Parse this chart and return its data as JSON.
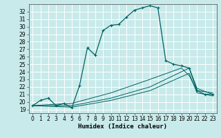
{
  "xlabel": "Humidex (Indice chaleur)",
  "xlim": [
    -0.5,
    23.5
  ],
  "ylim": [
    18.5,
    33.0
  ],
  "yticks": [
    19,
    20,
    21,
    22,
    23,
    24,
    25,
    26,
    27,
    28,
    29,
    30,
    31,
    32
  ],
  "xticks": [
    0,
    1,
    2,
    3,
    4,
    5,
    6,
    7,
    8,
    9,
    10,
    11,
    12,
    13,
    14,
    15,
    16,
    17,
    18,
    19,
    20,
    21,
    22,
    23
  ],
  "bg_color": "#c8eaea",
  "line_color": "#006060",
  "grid_color": "#ffffff",
  "main_curve": {
    "x": [
      0,
      1,
      2,
      3,
      4,
      5,
      6,
      7,
      8,
      9,
      10,
      11,
      12,
      13,
      14,
      15,
      16,
      17,
      18,
      19,
      20,
      21,
      22,
      23
    ],
    "y": [
      19.5,
      20.2,
      20.5,
      19.5,
      19.8,
      19.2,
      22.2,
      27.2,
      26.2,
      29.5,
      30.2,
      30.3,
      31.3,
      32.2,
      32.5,
      32.8,
      32.5,
      25.5,
      25.0,
      24.8,
      24.5,
      21.5,
      21.0,
      21.0
    ]
  },
  "secondary_curves": [
    {
      "x": [
        0,
        5,
        10,
        15,
        20,
        21,
        23
      ],
      "y": [
        19.5,
        19.3,
        20.2,
        21.5,
        23.8,
        21.2,
        20.8
      ]
    },
    {
      "x": [
        0,
        5,
        10,
        15,
        20,
        21,
        23
      ],
      "y": [
        19.5,
        19.5,
        20.5,
        22.0,
        24.5,
        21.8,
        21.0
      ]
    },
    {
      "x": [
        0,
        5,
        10,
        15,
        19,
        20,
        21,
        23
      ],
      "y": [
        19.5,
        19.8,
        21.2,
        23.0,
        24.5,
        23.5,
        21.5,
        21.2
      ]
    }
  ],
  "tick_fontsize": 5.5,
  "xlabel_fontsize": 6.5
}
